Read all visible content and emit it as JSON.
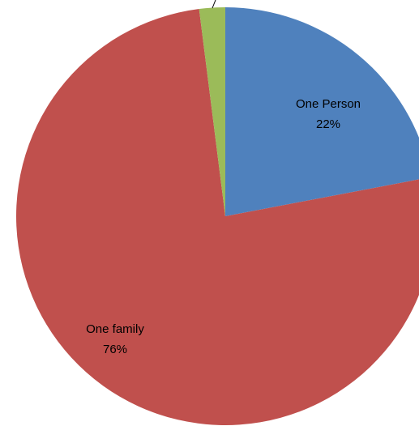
{
  "chart_data": {
    "type": "pie",
    "slices": [
      {
        "label": "One Person",
        "value": 22,
        "value_label": "22%",
        "color": "#4F81BD"
      },
      {
        "label": "One family",
        "value": 76,
        "value_label": "76%",
        "color": "#C0504D"
      },
      {
        "label": "",
        "value": 2,
        "value_label": "",
        "color": "#9BBB59"
      }
    ],
    "start_angle_deg": 0,
    "direction": "clockwise",
    "legend": "none",
    "title": ""
  }
}
